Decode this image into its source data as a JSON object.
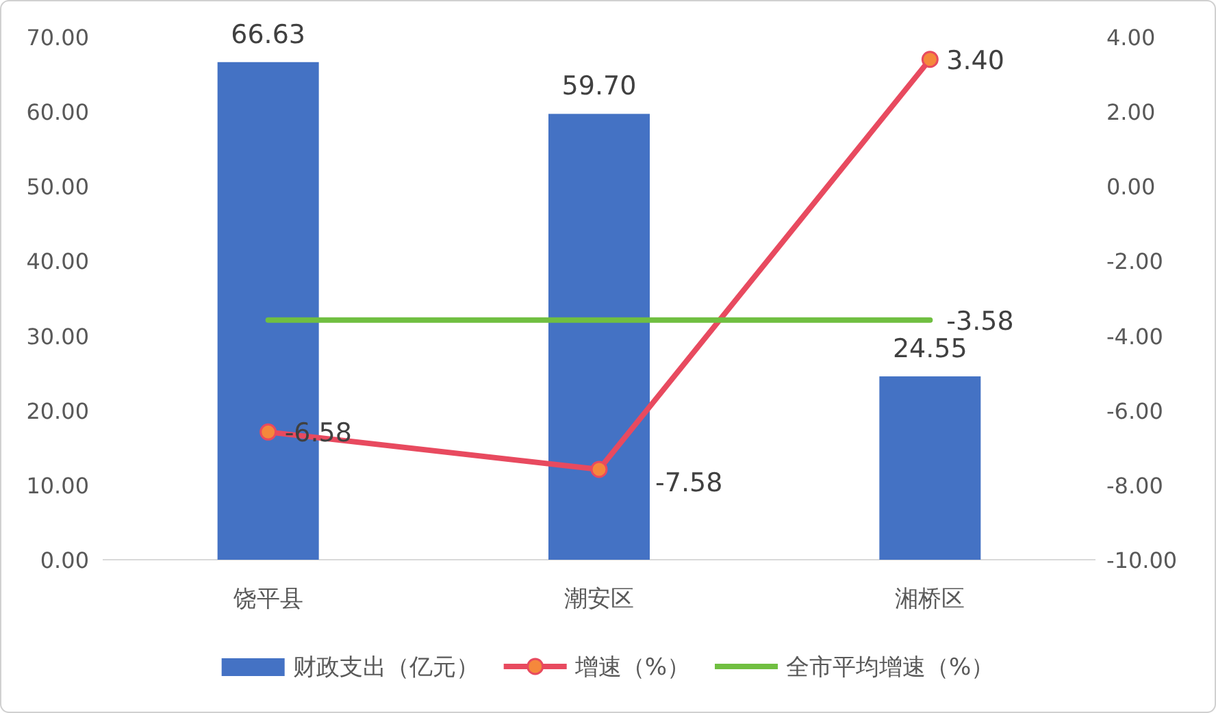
{
  "chart_data": {
    "type": "bar",
    "categories": [
      "饶平县",
      "潮安区",
      "湘桥区"
    ],
    "ylim": [
      0,
      70
    ],
    "yticks": [
      {
        "value": 0,
        "label": "0.00"
      },
      {
        "value": 10,
        "label": "10.00"
      },
      {
        "value": 20,
        "label": "20.00"
      },
      {
        "value": 30,
        "label": "30.00"
      },
      {
        "value": 40,
        "label": "40.00"
      },
      {
        "value": 50,
        "label": "50.00"
      },
      {
        "value": 60,
        "label": "60.00"
      },
      {
        "value": 70,
        "label": "70.00"
      }
    ],
    "y2lim": [
      -10,
      4
    ],
    "y2ticks": [
      {
        "value": -10,
        "label": "-10.00"
      },
      {
        "value": -8,
        "label": "-8.00"
      },
      {
        "value": -6,
        "label": "-6.00"
      },
      {
        "value": -4,
        "label": "-4.00"
      },
      {
        "value": -2,
        "label": "-2.00"
      },
      {
        "value": 0,
        "label": "0.00"
      },
      {
        "value": 2,
        "label": "2.00"
      },
      {
        "value": 4,
        "label": "4.00"
      }
    ],
    "grid": false,
    "legend": "bottom",
    "series": [
      {
        "name": "财政支出（亿元）",
        "color": "#4472c4",
        "values": [
          66.63,
          59.7,
          24.55
        ],
        "value_labels": [
          "66.63",
          "59.70",
          "24.55"
        ]
      },
      {
        "name": "增速（%）",
        "type": "line",
        "axis": "y2",
        "color": "#e84a5f",
        "marker": "circle",
        "values": [
          -6.58,
          -7.58,
          3.4
        ],
        "value_labels": [
          "-6.58",
          "-7.58",
          "3.40"
        ]
      },
      {
        "name": "全市平均增速（%）",
        "type": "line",
        "axis": "y2",
        "color": "#70bf41",
        "marker": "none",
        "values": [
          -3.58,
          -3.58,
          -3.58
        ],
        "value_labels": [
          null,
          null,
          "-3.58"
        ]
      }
    ]
  }
}
